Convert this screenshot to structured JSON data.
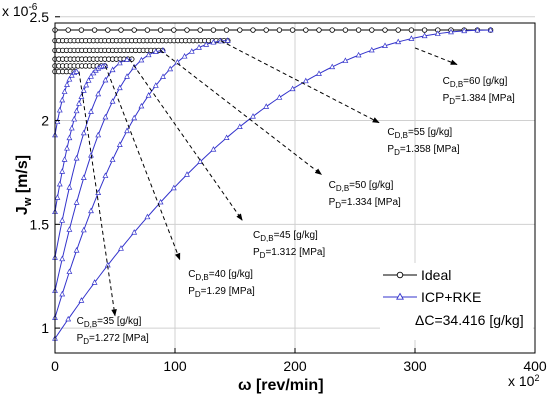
{
  "chart_data": {
    "type": "line",
    "xlabel": "ω  [rev/min]",
    "ylabel": "J",
    "ylabel_sub": "w",
    "ylabel_unit": "[m/s]",
    "x_multiplier": "x 10",
    "x_multiplier_exp": "2",
    "y_multiplier": "x 10",
    "y_multiplier_exp": "-6",
    "xlim": [
      0,
      400
    ],
    "ylim": [
      0.88,
      2.47
    ],
    "xticks": [
      "0",
      "100",
      "200",
      "300",
      "400"
    ],
    "yticks": [
      "1",
      "1.5",
      "2",
      "2.5"
    ],
    "xtick_values": [
      0,
      100,
      200,
      300,
      400
    ],
    "ytick_values": [
      1,
      1.5,
      2,
      2.5
    ],
    "grid": true,
    "legend": {
      "position": "bottom-right",
      "entries": [
        "Ideal",
        "ICP+RKE"
      ],
      "note": "ΔC=34.416 [g/kg]"
    },
    "series": [
      {
        "name": "Ideal",
        "color": "#000000",
        "marker": "circle",
        "curves": [
          {
            "y": 2.436,
            "x_end": 363
          },
          {
            "y": 2.385,
            "x_end": 145
          },
          {
            "y": 2.338,
            "x_end": 92
          },
          {
            "y": 2.296,
            "x_end": 64
          },
          {
            "y": 2.263,
            "x_end": 42
          },
          {
            "y": 2.236,
            "x_end": 19
          }
        ]
      },
      {
        "name": "ICP+RKE",
        "color": "#3333cc",
        "marker": "triangle",
        "curves": [
          {
            "y0": 0.95,
            "y_end": 2.436,
            "x_end": 363
          },
          {
            "y0": 1.05,
            "y_end": 2.385,
            "x_end": 145
          },
          {
            "y0": 1.18,
            "y_end": 2.338,
            "x_end": 92
          },
          {
            "y0": 1.34,
            "y_end": 2.296,
            "x_end": 64
          },
          {
            "y0": 1.56,
            "y_end": 2.263,
            "x_end": 42
          },
          {
            "y0": 1.93,
            "y_end": 2.236,
            "x_end": 19
          }
        ]
      }
    ],
    "annotations": [
      {
        "label": "C",
        "sub": "D,B",
        "value": "=60 [g/kg]",
        "pressure_label": "P",
        "pressure_sub": "D",
        "pressure_value": "=1.384 [MPa]",
        "arrow_from": [
          300,
          2.35
        ],
        "arrow_to": [
          335,
          2.27
        ],
        "text_at": [
          323,
          2.175
        ]
      },
      {
        "label": "C",
        "sub": "D,B",
        "value": "=55 [g/kg]",
        "pressure_label": "P",
        "pressure_sub": "D",
        "pressure_value": "=1.358 [MPa]",
        "arrow_from": [
          138,
          2.385
        ],
        "arrow_to": [
          270,
          1.99
        ],
        "text_at": [
          277,
          1.93
        ]
      },
      {
        "label": "C",
        "sub": "D,B",
        "value": "=50 [g/kg]",
        "pressure_label": "P",
        "pressure_sub": "D",
        "pressure_value": "=1.334 [MPa]",
        "arrow_from": [
          88,
          2.338
        ],
        "arrow_to": [
          222,
          1.74
        ],
        "text_at": [
          228,
          1.675
        ]
      },
      {
        "label": "C",
        "sub": "D,B",
        "value": "=45 [g/kg]",
        "pressure_label": "P",
        "pressure_sub": "D",
        "pressure_value": "=1.312 [MPa]",
        "arrow_from": [
          62,
          2.296
        ],
        "arrow_to": [
          156,
          1.52
        ],
        "text_at": [
          165,
          1.435
        ]
      },
      {
        "label": "C",
        "sub": "D,B",
        "value": "=40 [g/kg]",
        "pressure_label": "P",
        "pressure_sub": "D",
        "pressure_value": "=1.29 [MPa]",
        "arrow_from": [
          42,
          2.263
        ],
        "arrow_to": [
          104,
          1.33
        ],
        "text_at": [
          111,
          1.245
        ]
      },
      {
        "label": "C",
        "sub": "D,B",
        "value": "=35 [g/kg]",
        "pressure_label": "P",
        "pressure_sub": "D",
        "pressure_value": "=1.272 [MPa]",
        "arrow_from": [
          20,
          2.236
        ],
        "arrow_to": [
          50,
          1.06
        ],
        "text_at": [
          18,
          1.02
        ]
      }
    ]
  }
}
